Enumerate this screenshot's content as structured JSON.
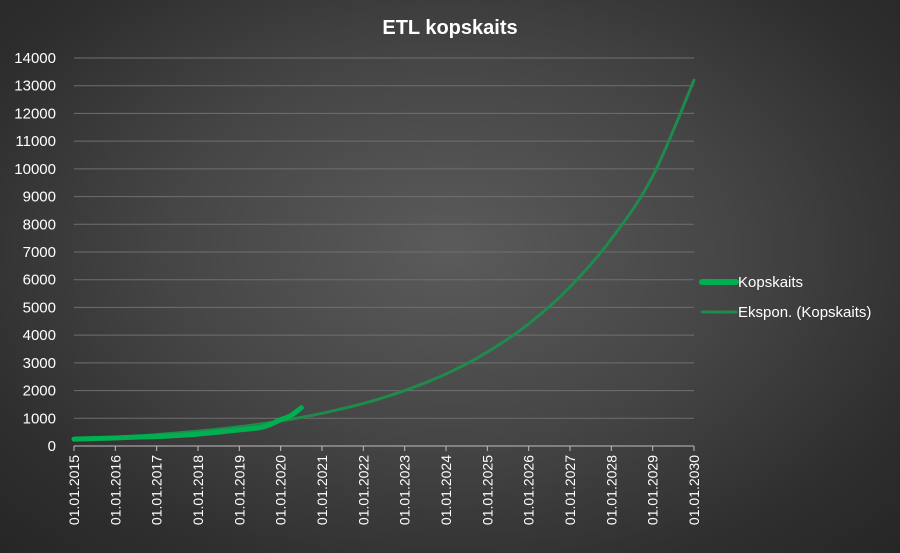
{
  "chart_data": {
    "type": "line",
    "title": "ETL kopskaits",
    "xlabel": "",
    "ylabel": "",
    "ylim": [
      0,
      14000
    ],
    "y_ticks": [
      0,
      1000,
      2000,
      3000,
      4000,
      5000,
      6000,
      7000,
      8000,
      9000,
      10000,
      11000,
      12000,
      13000,
      14000
    ],
    "x_range": [
      2015.0,
      2030.0
    ],
    "x_ticks": [
      "01.01.2015",
      "01.01.2016",
      "01.01.2017",
      "01.01.2018",
      "01.01.2019",
      "01.01.2020",
      "01.01.2021",
      "01.01.2022",
      "01.01.2023",
      "01.01.2024",
      "01.01.2025",
      "01.01.2026",
      "01.01.2027",
      "01.01.2028",
      "01.01.2029",
      "01.01.2030"
    ],
    "grid": true,
    "legend_position": "right",
    "series": [
      {
        "name": "Kopskaits",
        "color": "#00b050",
        "x": [
          "2015-01",
          "2015-07",
          "2016-01",
          "2016-07",
          "2017-01",
          "2017-07",
          "2018-01",
          "2018-07",
          "2019-01",
          "2019-07",
          "2019-10",
          "2020-01",
          "2020-04",
          "2020-07"
        ],
        "y": [
          250,
          270,
          290,
          320,
          340,
          380,
          430,
          500,
          580,
          660,
          780,
          950,
          1100,
          1380
        ]
      },
      {
        "name": "Ekspon. (Kopskaits)",
        "color": "#1f8a4c",
        "type": "trendline",
        "x": [
          "2015-01",
          "2016-01",
          "2017-01",
          "2018-01",
          "2019-01",
          "2020-01",
          "2021-01",
          "2022-01",
          "2023-01",
          "2024-01",
          "2025-01",
          "2026-01",
          "2027-01",
          "2028-01",
          "2029-01",
          "2030-01"
        ],
        "y": [
          240,
          315,
          410,
          535,
          695,
          905,
          1180,
          1535,
          2000,
          2600,
          3390,
          4410,
          5740,
          7470,
          9730,
          13200
        ]
      }
    ]
  }
}
